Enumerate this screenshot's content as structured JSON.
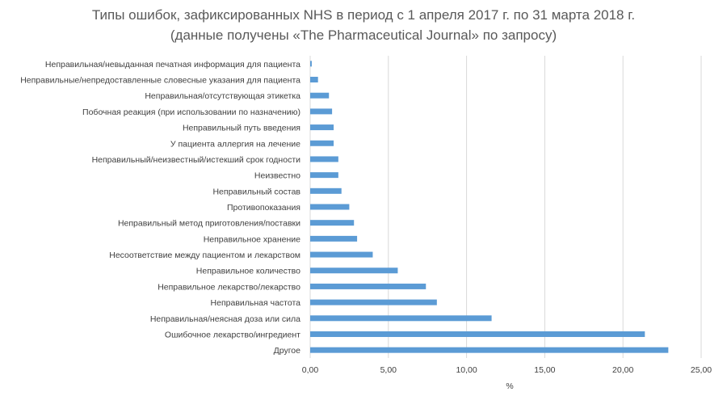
{
  "chart_data": {
    "type": "bar",
    "orientation": "horizontal",
    "title": "Типы ошибок, зафиксированных NHS в период с 1 апреля 2017 г. по 31 марта 2018 г.",
    "subtitle": "(данные получены «The Pharmaceutical Journal» по запросу)",
    "xlabel": "%",
    "ylabel": "",
    "xlim": [
      0,
      25
    ],
    "x_ticks": [
      "0,00",
      "5,00",
      "10,00",
      "15,00",
      "20,00",
      "25,00"
    ],
    "grid": true,
    "legend": "none",
    "bar_color": "#5b9bd5",
    "categories": [
      "Неправильная/невыданная печатная информация для пациента",
      "Неправильные/непредоставленные словесные указания для пациента",
      "Неправильная/отсутствующая этикетка",
      "Побочная реакция (при использовании по назначению)",
      "Неправильный путь введения",
      "У пациента аллергия на лечение",
      "Неправильный/неизвестный/истекший срок годности",
      "Неизвестно",
      "Неправильный состав",
      "Противопоказания",
      "Неправильный метод приготовления/поставки",
      "Неправильное хранение",
      "Несоответствие между пациентом и лекарством",
      "Неправильное количество",
      "Неправильное лекарство/лекарство",
      "Неправильная частота",
      "Неправильная/неясная доза или сила",
      "Ошибочное лекарство/ингредиент",
      "Другое"
    ],
    "values": [
      0.1,
      0.5,
      1.2,
      1.4,
      1.5,
      1.5,
      1.8,
      1.8,
      2.0,
      2.5,
      2.8,
      3.0,
      4.0,
      5.6,
      7.4,
      8.1,
      11.6,
      21.4,
      22.9
    ]
  }
}
